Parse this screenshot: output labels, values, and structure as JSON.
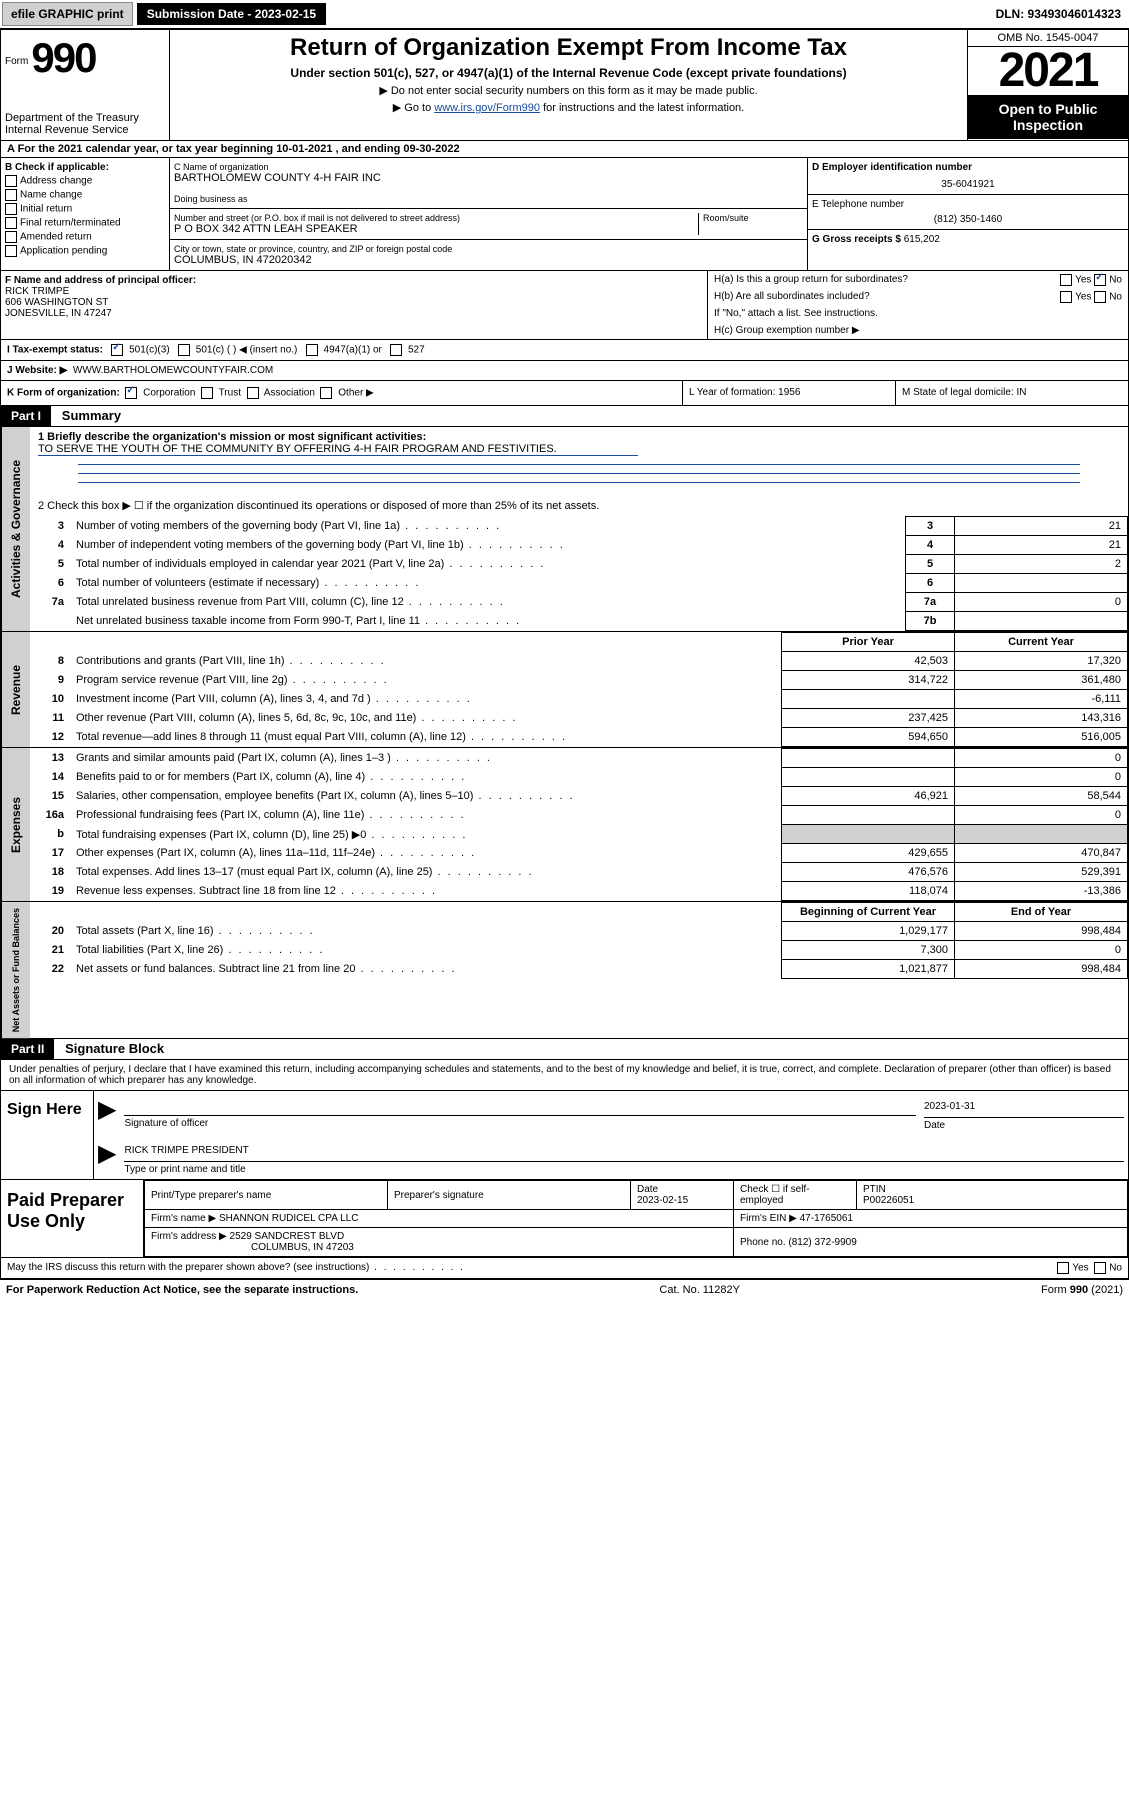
{
  "topbar": {
    "efile": "efile GRAPHIC print",
    "submission": "Submission Date - 2023-02-15",
    "dln": "DLN: 93493046014323"
  },
  "header": {
    "form_prefix": "Form",
    "form_number": "990",
    "dept1": "Department of the Treasury",
    "dept2": "Internal Revenue Service",
    "title": "Return of Organization Exempt From Income Tax",
    "sub1": "Under section 501(c), 527, or 4947(a)(1) of the Internal Revenue Code (except private foundations)",
    "sub2": "▶ Do not enter social security numbers on this form as it may be made public.",
    "sub3_pre": "▶ Go to ",
    "sub3_link": "www.irs.gov/Form990",
    "sub3_post": " for instructions and the latest information.",
    "omb": "OMB No. 1545-0047",
    "year": "2021",
    "open": "Open to Public Inspection"
  },
  "row_a": "A For the 2021 calendar year, or tax year beginning 10-01-2021    , and ending 09-30-2022",
  "col_b": {
    "title": "B Check if applicable:",
    "items": [
      "Address change",
      "Name change",
      "Initial return",
      "Final return/terminated",
      "Amended return",
      "Application pending"
    ]
  },
  "col_c": {
    "name_label": "C Name of organization",
    "name": "BARTHOLOMEW COUNTY 4-H FAIR INC",
    "dba_label": "Doing business as",
    "dba": "",
    "addr_label": "Number and street (or P.O. box if mail is not delivered to street address)",
    "room_label": "Room/suite",
    "addr": "P O BOX 342 ATTN LEAH SPEAKER",
    "city_label": "City or town, state or province, country, and ZIP or foreign postal code",
    "city": "COLUMBUS, IN  472020342"
  },
  "col_d": {
    "label": "D Employer identification number",
    "val": "35-6041921"
  },
  "col_e": {
    "label": "E Telephone number",
    "val": "(812) 350-1460"
  },
  "col_g": {
    "label": "G Gross receipts $",
    "val": "615,202"
  },
  "col_f": {
    "label": "F Name and address of principal officer:",
    "name": "RICK TRIMPE",
    "addr1": "606 WASHINGTON ST",
    "addr2": "JONESVILLE, IN  47247"
  },
  "col_h": {
    "ha": "H(a)  Is this a group return for subordinates?",
    "hb": "H(b)  Are all subordinates included?",
    "hb_note": "If \"No,\" attach a list. See instructions.",
    "hc": "H(c)  Group exemption number ▶",
    "yes": "Yes",
    "no": "No"
  },
  "row_i": {
    "label": "I    Tax-exempt status:",
    "opt1": "501(c)(3)",
    "opt2": "501(c) (  ) ◀ (insert no.)",
    "opt3": "4947(a)(1) or",
    "opt4": "527"
  },
  "row_j": {
    "label": "J   Website: ▶",
    "val": "WWW.BARTHOLOMEWCOUNTYFAIR.COM"
  },
  "row_k": {
    "label": "K Form of organization:",
    "opts": [
      "Corporation",
      "Trust",
      "Association",
      "Other ▶"
    ],
    "l": "L Year of formation: 1956",
    "m": "M State of legal domicile: IN"
  },
  "part1": {
    "hdr": "Part I",
    "title": "Summary",
    "line1_label": "1  Briefly describe the organization's mission or most significant activities:",
    "line1_val": "TO SERVE THE YOUTH OF THE COMMUNITY BY OFFERING 4-H FAIR PROGRAM AND FESTIVITIES.",
    "line2": "2   Check this box ▶ ☐  if the organization discontinued its operations or disposed of more than 25% of its net assets.",
    "gov_rows": [
      {
        "n": "3",
        "desc": "Number of voting members of the governing body (Part VI, line 1a)",
        "box": "3",
        "val": "21"
      },
      {
        "n": "4",
        "desc": "Number of independent voting members of the governing body (Part VI, line 1b)",
        "box": "4",
        "val": "21"
      },
      {
        "n": "5",
        "desc": "Total number of individuals employed in calendar year 2021 (Part V, line 2a)",
        "box": "5",
        "val": "2"
      },
      {
        "n": "6",
        "desc": "Total number of volunteers (estimate if necessary)",
        "box": "6",
        "val": ""
      },
      {
        "n": "7a",
        "desc": "Total unrelated business revenue from Part VIII, column (C), line 12",
        "box": "7a",
        "val": "0"
      },
      {
        "n": "",
        "desc": "Net unrelated business taxable income from Form 990-T, Part I, line 11",
        "box": "7b",
        "val": ""
      }
    ],
    "rev_hdr_prior": "Prior Year",
    "rev_hdr_curr": "Current Year",
    "rev_rows": [
      {
        "n": "8",
        "desc": "Contributions and grants (Part VIII, line 1h)",
        "p": "42,503",
        "c": "17,320"
      },
      {
        "n": "9",
        "desc": "Program service revenue (Part VIII, line 2g)",
        "p": "314,722",
        "c": "361,480"
      },
      {
        "n": "10",
        "desc": "Investment income (Part VIII, column (A), lines 3, 4, and 7d )",
        "p": "",
        "c": "-6,111"
      },
      {
        "n": "11",
        "desc": "Other revenue (Part VIII, column (A), lines 5, 6d, 8c, 9c, 10c, and 11e)",
        "p": "237,425",
        "c": "143,316"
      },
      {
        "n": "12",
        "desc": "Total revenue—add lines 8 through 11 (must equal Part VIII, column (A), line 12)",
        "p": "594,650",
        "c": "516,005"
      }
    ],
    "exp_rows": [
      {
        "n": "13",
        "desc": "Grants and similar amounts paid (Part IX, column (A), lines 1–3 )",
        "p": "",
        "c": "0"
      },
      {
        "n": "14",
        "desc": "Benefits paid to or for members (Part IX, column (A), line 4)",
        "p": "",
        "c": "0"
      },
      {
        "n": "15",
        "desc": "Salaries, other compensation, employee benefits (Part IX, column (A), lines 5–10)",
        "p": "46,921",
        "c": "58,544"
      },
      {
        "n": "16a",
        "desc": "Professional fundraising fees (Part IX, column (A), line 11e)",
        "p": "",
        "c": "0"
      },
      {
        "n": "b",
        "desc": "Total fundraising expenses (Part IX, column (D), line 25) ▶0",
        "p": "__SHADE__",
        "c": "__SHADE__"
      },
      {
        "n": "17",
        "desc": "Other expenses (Part IX, column (A), lines 11a–11d, 11f–24e)",
        "p": "429,655",
        "c": "470,847"
      },
      {
        "n": "18",
        "desc": "Total expenses. Add lines 13–17 (must equal Part IX, column (A), line 25)",
        "p": "476,576",
        "c": "529,391"
      },
      {
        "n": "19",
        "desc": "Revenue less expenses. Subtract line 18 from line 12",
        "p": "118,074",
        "c": "-13,386"
      }
    ],
    "na_hdr_beg": "Beginning of Current Year",
    "na_hdr_end": "End of Year",
    "na_rows": [
      {
        "n": "20",
        "desc": "Total assets (Part X, line 16)",
        "p": "1,029,177",
        "c": "998,484"
      },
      {
        "n": "21",
        "desc": "Total liabilities (Part X, line 26)",
        "p": "7,300",
        "c": "0"
      },
      {
        "n": "22",
        "desc": "Net assets or fund balances. Subtract line 21 from line 20",
        "p": "1,021,877",
        "c": "998,484"
      }
    ]
  },
  "vlabels": {
    "gov": "Activities & Governance",
    "rev": "Revenue",
    "exp": "Expenses",
    "na": "Net Assets or Fund Balances"
  },
  "part2": {
    "hdr": "Part II",
    "title": "Signature Block",
    "decl": "Under penalties of perjury, I declare that I have examined this return, including accompanying schedules and statements, and to the best of my knowledge and belief, it is true, correct, and complete. Declaration of preparer (other than officer) is based on all information of which preparer has any knowledge.",
    "sign_here": "Sign Here",
    "sig_officer": "Signature of officer",
    "date_label": "Date",
    "date_val": "2023-01-31",
    "name_title": "RICK TRIMPE  PRESIDENT",
    "name_title_label": "Type or print name and title"
  },
  "paid": {
    "label": "Paid Preparer Use Only",
    "h1": "Print/Type preparer's name",
    "h2": "Preparer's signature",
    "h3": "Date",
    "h3v": "2023-02-15",
    "h4a": "Check ☐ if self-employed",
    "h5": "PTIN",
    "h5v": "P00226051",
    "firm_name_l": "Firm's name      ▶",
    "firm_name": "SHANNON RUDICEL CPA LLC",
    "firm_ein_l": "Firm's EIN ▶",
    "firm_ein": "47-1765061",
    "firm_addr_l": "Firm's address ▶",
    "firm_addr1": "2529 SANDCREST BLVD",
    "firm_addr2": "COLUMBUS, IN  47203",
    "phone_l": "Phone no.",
    "phone": "(812) 372-9909"
  },
  "may_discuss": "May the IRS discuss this return with the preparer shown above? (see instructions)",
  "footer": {
    "left": "For Paperwork Reduction Act Notice, see the separate instructions.",
    "mid": "Cat. No. 11282Y",
    "right": "Form 990 (2021)"
  },
  "colors": {
    "link": "#1a4ba0",
    "shade": "#d0d0d0"
  }
}
